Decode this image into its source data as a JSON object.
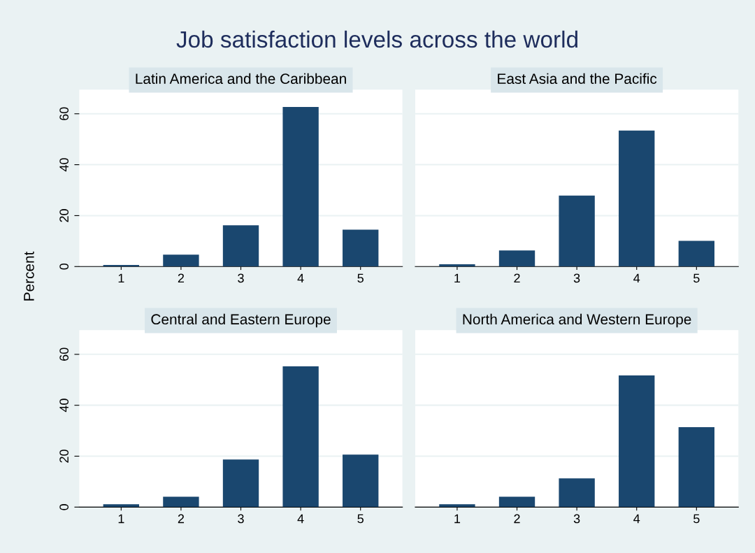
{
  "chart_data": [
    {
      "type": "bar",
      "title": "Latin America and the Caribbean",
      "ylabel": "Percent",
      "annotations": [
        "Job satisfaction levels across the world"
      ],
      "categories": [
        "1",
        "2",
        "3",
        "4",
        "5"
      ],
      "values": [
        0.6,
        4.7,
        16.2,
        62.7,
        14.5
      ],
      "color": "#1a476f",
      "ylim": [
        0,
        69.5
      ],
      "yticks": [
        0,
        20,
        40,
        60
      ],
      "grid": "y",
      "tick_labels": "both"
    },
    {
      "type": "bar",
      "title": "East Asia and the Pacific",
      "categories": [
        "1",
        "2",
        "3",
        "4",
        "5"
      ],
      "values": [
        0.9,
        6.3,
        27.9,
        53.4,
        10.1
      ],
      "color": "#1a476f",
      "ylim": [
        0,
        69.5
      ],
      "yticks": [
        0,
        20,
        40,
        60
      ],
      "grid": "y",
      "tick_labels": "x"
    },
    {
      "type": "bar",
      "title": "Central and Eastern Europe",
      "categories": [
        "1",
        "2",
        "3",
        "4",
        "5"
      ],
      "values": [
        1.1,
        4.1,
        18.7,
        55.3,
        20.6
      ],
      "color": "#1a476f",
      "ylim": [
        0,
        69.5
      ],
      "yticks": [
        0,
        20,
        40,
        60
      ],
      "grid": "y",
      "tick_labels": "both"
    },
    {
      "type": "bar",
      "title": "North America and Western Europe",
      "categories": [
        "1",
        "2",
        "3",
        "4",
        "5"
      ],
      "values": [
        1.1,
        4.1,
        11.3,
        51.7,
        31.4
      ],
      "color": "#1a476f",
      "ylim": [
        0,
        69.5
      ],
      "yticks": [
        0,
        20,
        40,
        60
      ],
      "grid": "y",
      "tick_labels": "x"
    }
  ]
}
